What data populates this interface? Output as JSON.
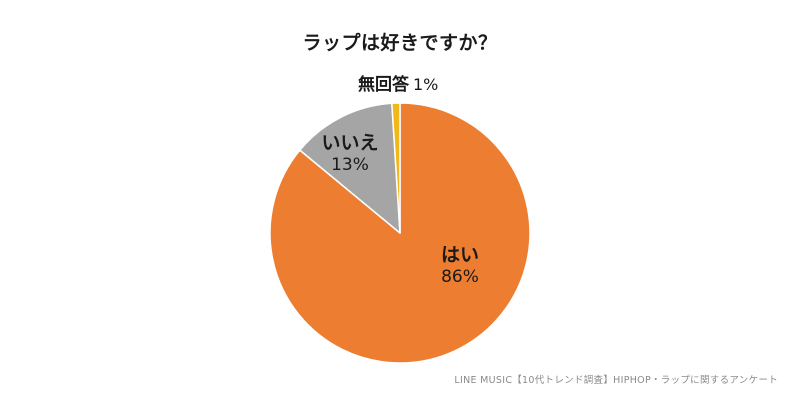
{
  "chart_data": {
    "type": "pie",
    "title": "ラップは好きですか？",
    "slices": [
      {
        "label": "はい",
        "value": 86,
        "value_label": "86%",
        "color": "#ed7d31"
      },
      {
        "label": "いいえ",
        "value": 13,
        "value_label": "13%",
        "color": "#a5a5a5"
      },
      {
        "label": "無回答",
        "value": 1,
        "value_label": "1%",
        "color": "#f2b81b"
      }
    ],
    "start": "top",
    "direction": "clockwise",
    "slice_border": "#ffffff"
  },
  "source": "LINE MUSIC【10代トレンド調査】HIPHOP・ラップに関するアンケート"
}
